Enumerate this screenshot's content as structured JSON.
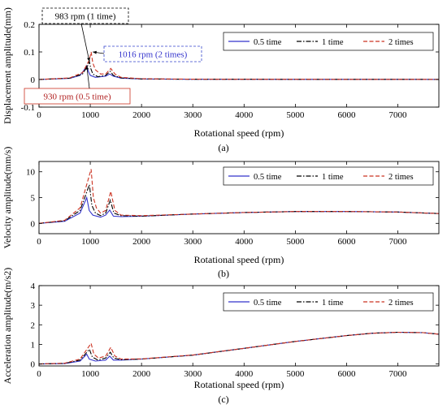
{
  "chart_data": [
    {
      "type": "line",
      "id": "a",
      "caption": "(a)",
      "xlabel": "Rotational speed (rpm)",
      "ylabel": "Displacement amplitude(mm)",
      "xlim": [
        0,
        7800
      ],
      "ylim": [
        -0.1,
        0.2
      ],
      "xticks": [
        0,
        1000,
        2000,
        3000,
        4000,
        5000,
        6000,
        7000
      ],
      "yticks": [
        -0.1,
        0,
        0.1,
        0.2
      ],
      "grid": false,
      "legend_position": "top-right",
      "legend": [
        "0.5 time",
        "1   time",
        "2 times"
      ],
      "series": [
        {
          "name": "0.5 time",
          "color": "#3333cc",
          "style": "solid",
          "x": [
            0,
            600,
            800,
            900,
            930,
            960,
            1000,
            1100,
            1300,
            1380,
            1450,
            1600,
            2000,
            3000,
            4000,
            5000,
            6000,
            7000,
            7800
          ],
          "y": [
            0,
            0.004,
            0.015,
            0.04,
            0.05,
            0.03,
            0.015,
            0.008,
            0.012,
            0.02,
            0.012,
            0.005,
            0.002,
            0.001,
            0.0008,
            0.0007,
            0.0006,
            0.0005,
            0.0004
          ]
        },
        {
          "name": "1   time",
          "color": "#000000",
          "style": "dashdot",
          "x": [
            0,
            600,
            850,
            950,
            983,
            1010,
            1050,
            1150,
            1300,
            1390,
            1450,
            1600,
            2000,
            3000,
            4000,
            5000,
            6000,
            7000,
            7800
          ],
          "y": [
            0,
            0.005,
            0.02,
            0.05,
            0.065,
            0.04,
            0.02,
            0.01,
            0.015,
            0.03,
            0.015,
            0.006,
            0.002,
            0.001,
            0.0008,
            0.0007,
            0.0006,
            0.0005,
            0.0004
          ]
        },
        {
          "name": "2 times",
          "color": "#cc3322",
          "style": "dashed",
          "x": [
            0,
            600,
            850,
            980,
            1016,
            1050,
            1100,
            1200,
            1300,
            1400,
            1480,
            1600,
            2000,
            3000,
            4000,
            5000,
            6000,
            7000,
            7800
          ],
          "y": [
            0,
            0.006,
            0.025,
            0.07,
            0.1,
            0.06,
            0.035,
            0.02,
            0.02,
            0.04,
            0.02,
            0.008,
            0.003,
            0.0012,
            0.001,
            0.0008,
            0.0007,
            0.0006,
            0.0005
          ]
        }
      ],
      "annotations": [
        {
          "text": "983 rpm (1 time)",
          "box": "dashed-black"
        },
        {
          "text": "1016 rpm (2 times)",
          "box": "dashed-blue"
        },
        {
          "text": "930 rpm (0.5 time)",
          "box": "solid-red"
        }
      ]
    },
    {
      "type": "line",
      "id": "b",
      "caption": "(b)",
      "xlabel": "Rotational speed (rpm)",
      "ylabel": "Velocity amplitude(mm/s)",
      "xlim": [
        0,
        7800
      ],
      "ylim": [
        -2,
        12
      ],
      "xticks": [
        0,
        1000,
        2000,
        3000,
        4000,
        5000,
        6000,
        7000
      ],
      "yticks": [
        0,
        5,
        10
      ],
      "grid": false,
      "legend_position": "top-right",
      "legend": [
        "0.5 time",
        "1   time",
        "2 times"
      ],
      "series": [
        {
          "name": "0.5 time",
          "color": "#3333cc",
          "style": "solid",
          "x": [
            0,
            500,
            800,
            930,
            980,
            1050,
            1200,
            1300,
            1380,
            1450,
            1600,
            2000,
            3000,
            4000,
            5000,
            6000,
            7000,
            7800
          ],
          "y": [
            0,
            0.4,
            2,
            5,
            2.5,
            1.6,
            1.2,
            1.6,
            2.6,
            1.4,
            1.3,
            1.4,
            1.8,
            2.1,
            2.3,
            2.3,
            2.2,
            1.9
          ]
        },
        {
          "name": "1   time",
          "color": "#000000",
          "style": "dashdot",
          "x": [
            0,
            500,
            800,
            983,
            1030,
            1100,
            1200,
            1300,
            1390,
            1460,
            1600,
            2000,
            3000,
            4000,
            5000,
            6000,
            7000,
            7800
          ],
          "y": [
            0,
            0.5,
            2.5,
            7.5,
            3.5,
            2,
            1.5,
            2,
            4.5,
            2,
            1.5,
            1.4,
            1.8,
            2.1,
            2.3,
            2.3,
            2.2,
            1.9
          ]
        },
        {
          "name": "2 times",
          "color": "#cc3322",
          "style": "dashed",
          "x": [
            0,
            500,
            800,
            1016,
            1060,
            1120,
            1200,
            1300,
            1400,
            1480,
            1600,
            2000,
            3000,
            4000,
            5000,
            6000,
            7000,
            7800
          ],
          "y": [
            0,
            0.6,
            3,
            10.5,
            5,
            3,
            2,
            2.5,
            6.2,
            2.5,
            1.6,
            1.5,
            1.8,
            2.1,
            2.3,
            2.3,
            2.2,
            1.9
          ]
        }
      ]
    },
    {
      "type": "line",
      "id": "c",
      "caption": "(c)",
      "xlabel": "Rotational speed (rpm)",
      "ylabel": "Acceleration amplitude(m/s2)",
      "xlim": [
        0,
        7800
      ],
      "ylim": [
        -0.1,
        4
      ],
      "xticks": [
        0,
        1000,
        2000,
        3000,
        4000,
        5000,
        6000,
        7000
      ],
      "yticks": [
        0,
        1,
        2,
        3,
        4
      ],
      "grid": false,
      "legend_position": "top-right",
      "legend": [
        "0.5 time",
        "1   time",
        "2 times"
      ],
      "series": [
        {
          "name": "0.5 time",
          "color": "#3333cc",
          "style": "solid",
          "x": [
            0,
            500,
            800,
            930,
            980,
            1100,
            1300,
            1380,
            1450,
            1600,
            2000,
            3000,
            4000,
            5000,
            6000,
            6500,
            7000,
            7500,
            7800
          ],
          "y": [
            0,
            0.02,
            0.15,
            0.5,
            0.25,
            0.15,
            0.2,
            0.4,
            0.2,
            0.2,
            0.25,
            0.45,
            0.8,
            1.15,
            1.45,
            1.57,
            1.62,
            1.6,
            1.52
          ]
        },
        {
          "name": "1   time",
          "color": "#000000",
          "style": "dashdot",
          "x": [
            0,
            500,
            800,
            983,
            1040,
            1150,
            1300,
            1390,
            1460,
            1600,
            2000,
            3000,
            4000,
            5000,
            6000,
            6500,
            7000,
            7500,
            7800
          ],
          "y": [
            0,
            0.03,
            0.2,
            0.75,
            0.35,
            0.2,
            0.3,
            0.6,
            0.3,
            0.22,
            0.25,
            0.45,
            0.8,
            1.15,
            1.45,
            1.57,
            1.62,
            1.6,
            1.52
          ]
        },
        {
          "name": "2 times",
          "color": "#cc3322",
          "style": "dashed",
          "x": [
            0,
            500,
            800,
            1016,
            1070,
            1160,
            1300,
            1400,
            1480,
            1600,
            2000,
            3000,
            4000,
            5000,
            6000,
            6500,
            7000,
            7500,
            7800
          ],
          "y": [
            0,
            0.04,
            0.25,
            1.05,
            0.5,
            0.3,
            0.4,
            0.85,
            0.4,
            0.25,
            0.26,
            0.46,
            0.8,
            1.15,
            1.45,
            1.57,
            1.62,
            1.6,
            1.52
          ]
        }
      ]
    }
  ]
}
